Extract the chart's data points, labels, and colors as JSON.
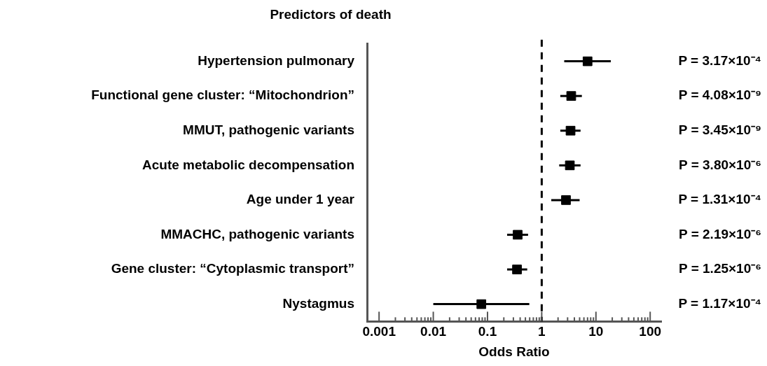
{
  "chart_data": {
    "type": "scatter",
    "orientation": "horizontal",
    "title": "Predictors of death",
    "xlabel": "Odds Ratio",
    "categories": [
      "Hypertension pulmonary",
      "Functional gene cluster: “Mitochondrion”",
      "MMUT, pathogenic variants",
      "Acute metabolic decompensation",
      "Age under 1 year",
      "MMACHC, pathogenic variants",
      "Gene cluster: “Cytoplasmic transport”",
      "Nystagmus"
    ],
    "values": [
      7.0,
      3.5,
      3.4,
      3.3,
      2.8,
      0.36,
      0.35,
      0.077
    ],
    "errors": [
      [
        2.6,
        18.8
      ],
      [
        2.2,
        5.5
      ],
      [
        2.2,
        5.2
      ],
      [
        2.1,
        5.2
      ],
      [
        1.5,
        5.0
      ],
      [
        0.23,
        0.56
      ],
      [
        0.23,
        0.54
      ],
      [
        0.01,
        0.59
      ]
    ],
    "value_labels": [
      "P = 3.17×10⁻⁴",
      "P = 4.08×10⁻⁹",
      "P = 3.45×10⁻⁹",
      "P = 3.80×10⁻⁶",
      "P = 1.31×10⁻⁴",
      "P = 2.19×10⁻⁶",
      "P = 1.25×10⁻⁶",
      "P = 1.17×10⁻⁴"
    ],
    "color": "#000000",
    "marker": "square",
    "log": "x",
    "grid": false,
    "legend": false,
    "xlim": [
      0.0006,
      160
    ],
    "xticks": [
      0.001,
      {
        "value": 0.002,
        "label": null
      },
      {
        "value": 0.003,
        "label": null
      },
      {
        "value": 0.004,
        "label": null
      },
      {
        "value": 0.005,
        "label": null
      },
      {
        "value": 0.006,
        "label": null
      },
      {
        "value": 0.007,
        "label": null
      },
      {
        "value": 0.008,
        "label": null
      },
      {
        "value": 0.009,
        "label": null
      },
      0.01,
      {
        "value": 0.02,
        "label": null
      },
      {
        "value": 0.03,
        "label": null
      },
      {
        "value": 0.04,
        "label": null
      },
      {
        "value": 0.05,
        "label": null
      },
      {
        "value": 0.06,
        "label": null
      },
      {
        "value": 0.07,
        "label": null
      },
      {
        "value": 0.08,
        "label": null
      },
      {
        "value": 0.09,
        "label": null
      },
      0.1,
      {
        "value": 0.2,
        "label": null
      },
      {
        "value": 0.3,
        "label": null
      },
      {
        "value": 0.4,
        "label": null
      },
      {
        "value": 0.5,
        "label": null
      },
      {
        "value": 0.6,
        "label": null
      },
      {
        "value": 0.7,
        "label": null
      },
      {
        "value": 0.8,
        "label": null
      },
      {
        "value": 0.9,
        "label": null
      },
      1,
      {
        "value": 2,
        "label": null
      },
      {
        "value": 3,
        "label": null
      },
      {
        "value": 4,
        "label": null
      },
      {
        "value": 5,
        "label": null
      },
      {
        "value": 6,
        "label": null
      },
      {
        "value": 7,
        "label": null
      },
      {
        "value": 8,
        "label": null
      },
      {
        "value": 9,
        "label": null
      },
      10,
      {
        "value": 20,
        "label": null
      },
      {
        "value": 30,
        "label": null
      },
      {
        "value": 40,
        "label": null
      },
      {
        "value": 50,
        "label": null
      },
      {
        "value": 60,
        "label": null
      },
      {
        "value": 70,
        "label": null
      },
      {
        "value": 80,
        "label": null
      },
      {
        "value": 90,
        "label": null
      },
      100
    ],
    "ref_lines": [
      {
        "axis": "x",
        "value": 1,
        "line_style": "dashed",
        "color": "#000000"
      }
    ]
  }
}
